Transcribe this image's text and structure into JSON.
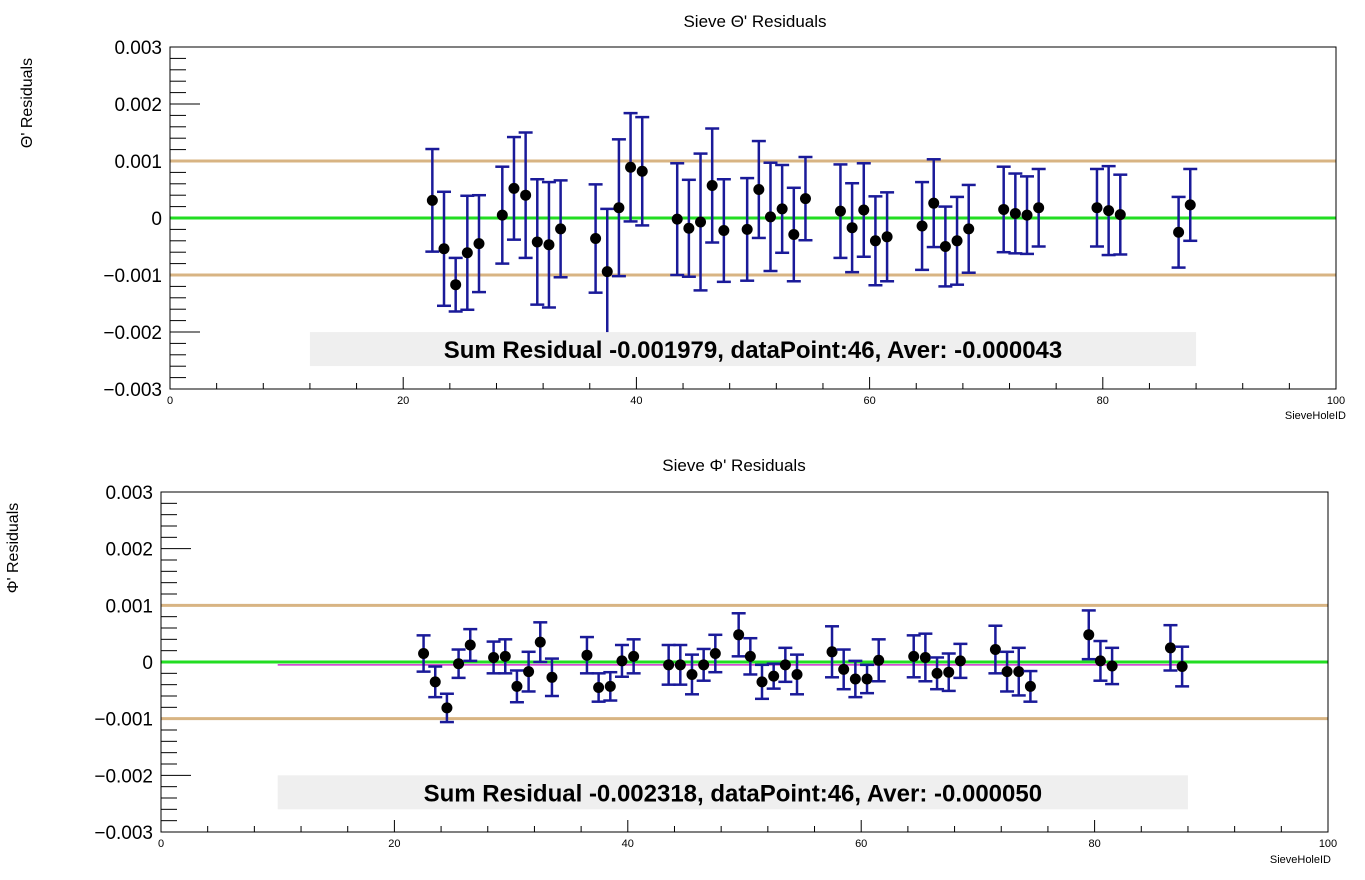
{
  "chart_data": [
    {
      "type": "scatter",
      "title": "Sieve Θ' Residuals",
      "ylabel": "Θ' Residuals",
      "xlabel": "SieveHoleID",
      "xlim": [
        0,
        100
      ],
      "ylim": [
        -0.003,
        0.003
      ],
      "x_ticks": [
        "0",
        "20",
        "40",
        "60",
        "80",
        "100"
      ],
      "y_ticks": [
        "0.003",
        "0.002",
        "0.001",
        "0",
        "−0.001",
        "−0.002",
        "−0.003"
      ],
      "reference_lines": [
        {
          "y": 0.001,
          "color": "#d8b483"
        },
        {
          "y": 0,
          "color": "#22dd22"
        },
        {
          "y": -0.001,
          "color": "#d8b483"
        }
      ],
      "summary_text": "Sum Residual -0.001979, dataPoint:46, Aver: -0.000043",
      "marker_color": "#000000",
      "error_color": "#1a1a99",
      "points": [
        {
          "x": 22.5,
          "y": 0.00031,
          "err": 0.0009
        },
        {
          "x": 23.5,
          "y": -0.00054,
          "err": 0.001
        },
        {
          "x": 24.5,
          "y": -0.00117,
          "err": 0.00047
        },
        {
          "x": 25.5,
          "y": -0.00061,
          "err": 0.001
        },
        {
          "x": 26.5,
          "y": -0.00045,
          "err": 0.00085
        },
        {
          "x": 28.5,
          "y": 5e-05,
          "err": 0.00085
        },
        {
          "x": 29.5,
          "y": 0.00052,
          "err": 0.0009
        },
        {
          "x": 30.5,
          "y": 0.0004,
          "err": 0.0011
        },
        {
          "x": 31.5,
          "y": -0.00042,
          "err": 0.0011
        },
        {
          "x": 32.5,
          "y": -0.00047,
          "err": 0.0011
        },
        {
          "x": 33.5,
          "y": -0.00019,
          "err": 0.00085
        },
        {
          "x": 36.5,
          "y": -0.00036,
          "err": 0.00095
        },
        {
          "x": 37.5,
          "y": -0.00094,
          "err": 0.0011
        },
        {
          "x": 38.5,
          "y": 0.00018,
          "err": 0.0012
        },
        {
          "x": 39.5,
          "y": 0.00089,
          "err": 0.00095
        },
        {
          "x": 40.5,
          "y": 0.00082,
          "err": 0.00095
        },
        {
          "x": 43.5,
          "y": -2e-05,
          "err": 0.00098
        },
        {
          "x": 44.5,
          "y": -0.00018,
          "err": 0.00085
        },
        {
          "x": 45.5,
          "y": -7e-05,
          "err": 0.0012
        },
        {
          "x": 46.5,
          "y": 0.00057,
          "err": 0.001
        },
        {
          "x": 47.5,
          "y": -0.00022,
          "err": 0.0009
        },
        {
          "x": 49.5,
          "y": -0.0002,
          "err": 0.0009
        },
        {
          "x": 50.5,
          "y": 0.0005,
          "err": 0.00085
        },
        {
          "x": 51.5,
          "y": 2e-05,
          "err": 0.00095
        },
        {
          "x": 52.5,
          "y": 0.00016,
          "err": 0.00077
        },
        {
          "x": 53.5,
          "y": -0.00029,
          "err": 0.00082
        },
        {
          "x": 54.5,
          "y": 0.00034,
          "err": 0.00073
        },
        {
          "x": 57.5,
          "y": 0.00012,
          "err": 0.00082
        },
        {
          "x": 58.5,
          "y": -0.00017,
          "err": 0.00078
        },
        {
          "x": 59.5,
          "y": 0.00014,
          "err": 0.00082
        },
        {
          "x": 60.5,
          "y": -0.0004,
          "err": 0.00078
        },
        {
          "x": 61.5,
          "y": -0.00033,
          "err": 0.00078
        },
        {
          "x": 64.5,
          "y": -0.00014,
          "err": 0.00077
        },
        {
          "x": 65.5,
          "y": 0.00026,
          "err": 0.00077
        },
        {
          "x": 66.5,
          "y": -0.0005,
          "err": 0.0007
        },
        {
          "x": 67.5,
          "y": -0.0004,
          "err": 0.00077
        },
        {
          "x": 68.5,
          "y": -0.00019,
          "err": 0.00077
        },
        {
          "x": 71.5,
          "y": 0.00015,
          "err": 0.00075
        },
        {
          "x": 72.5,
          "y": 8e-05,
          "err": 0.0007
        },
        {
          "x": 73.5,
          "y": 5e-05,
          "err": 0.00068
        },
        {
          "x": 74.5,
          "y": 0.00018,
          "err": 0.00068
        },
        {
          "x": 79.5,
          "y": 0.00018,
          "err": 0.00068
        },
        {
          "x": 80.5,
          "y": 0.00013,
          "err": 0.00078
        },
        {
          "x": 81.5,
          "y": 6e-05,
          "err": 0.0007
        },
        {
          "x": 86.5,
          "y": -0.00025,
          "err": 0.00062
        },
        {
          "x": 87.5,
          "y": 0.00023,
          "err": 0.00063
        }
      ]
    },
    {
      "type": "scatter",
      "title": "Sieve Φ' Residuals",
      "ylabel": "Φ' Residuals",
      "xlabel": "SieveHoleID",
      "xlim": [
        0,
        100
      ],
      "ylim": [
        -0.003,
        0.003
      ],
      "x_ticks": [
        "0",
        "20",
        "40",
        "60",
        "80",
        "100"
      ],
      "y_ticks": [
        "0.003",
        "0.002",
        "0.001",
        "0",
        "−0.001",
        "−0.002",
        "−0.003"
      ],
      "reference_lines": [
        {
          "y": 0.001,
          "color": "#d8b483"
        },
        {
          "y": 0,
          "color": "#22dd22"
        },
        {
          "y": -0.001,
          "color": "#d8b483"
        }
      ],
      "average_line": {
        "y": -5e-05,
        "x_from": 10,
        "x_to": 87.5,
        "color": "#cc33cc"
      },
      "summary_text": "Sum Residual -0.002318, dataPoint:46, Aver: -0.000050",
      "marker_color": "#000000",
      "error_color": "#1a1a99",
      "points": [
        {
          "x": 22.5,
          "y": 0.00015,
          "err": 0.00032
        },
        {
          "x": 23.5,
          "y": -0.00035,
          "err": 0.00027
        },
        {
          "x": 24.5,
          "y": -0.00081,
          "err": 0.00025
        },
        {
          "x": 25.5,
          "y": -3e-05,
          "err": 0.00025
        },
        {
          "x": 26.5,
          "y": 0.0003,
          "err": 0.00028
        },
        {
          "x": 28.5,
          "y": 8e-05,
          "err": 0.00028
        },
        {
          "x": 29.5,
          "y": 0.0001,
          "err": 0.0003
        },
        {
          "x": 30.5,
          "y": -0.00043,
          "err": 0.00028
        },
        {
          "x": 31.5,
          "y": -0.00017,
          "err": 0.00035
        },
        {
          "x": 32.5,
          "y": 0.00035,
          "err": 0.00035
        },
        {
          "x": 33.5,
          "y": -0.00027,
          "err": 0.00033
        },
        {
          "x": 36.5,
          "y": 0.00012,
          "err": 0.00032
        },
        {
          "x": 37.5,
          "y": -0.00045,
          "err": 0.00025
        },
        {
          "x": 38.5,
          "y": -0.00043,
          "err": 0.00025
        },
        {
          "x": 39.5,
          "y": 2e-05,
          "err": 0.00028
        },
        {
          "x": 40.5,
          "y": 0.0001,
          "err": 0.0003
        },
        {
          "x": 43.5,
          "y": -5e-05,
          "err": 0.00035
        },
        {
          "x": 44.5,
          "y": -5e-05,
          "err": 0.00035
        },
        {
          "x": 45.5,
          "y": -0.00022,
          "err": 0.00035
        },
        {
          "x": 46.5,
          "y": -5e-05,
          "err": 0.00028
        },
        {
          "x": 47.5,
          "y": 0.00015,
          "err": 0.00033
        },
        {
          "x": 49.5,
          "y": 0.00048,
          "err": 0.00038
        },
        {
          "x": 50.5,
          "y": 0.0001,
          "err": 0.00032
        },
        {
          "x": 51.5,
          "y": -0.00035,
          "err": 0.0003
        },
        {
          "x": 52.5,
          "y": -0.00025,
          "err": 0.00022
        },
        {
          "x": 53.5,
          "y": -5e-05,
          "err": 0.0003
        },
        {
          "x": 54.5,
          "y": -0.00022,
          "err": 0.00035
        },
        {
          "x": 57.5,
          "y": 0.00018,
          "err": 0.00045
        },
        {
          "x": 58.5,
          "y": -0.00013,
          "err": 0.00035
        },
        {
          "x": 59.5,
          "y": -0.0003,
          "err": 0.00032
        },
        {
          "x": 60.5,
          "y": -0.0003,
          "err": 0.00025
        },
        {
          "x": 61.5,
          "y": 3e-05,
          "err": 0.00037
        },
        {
          "x": 64.5,
          "y": 0.0001,
          "err": 0.00037
        },
        {
          "x": 65.5,
          "y": 8e-05,
          "err": 0.00042
        },
        {
          "x": 66.5,
          "y": -0.0002,
          "err": 0.00028
        },
        {
          "x": 67.5,
          "y": -0.00018,
          "err": 0.00033
        },
        {
          "x": 68.5,
          "y": 2e-05,
          "err": 0.0003
        },
        {
          "x": 71.5,
          "y": 0.00022,
          "err": 0.00042
        },
        {
          "x": 72.5,
          "y": -0.00017,
          "err": 0.00035
        },
        {
          "x": 73.5,
          "y": -0.00017,
          "err": 0.00042
        },
        {
          "x": 74.5,
          "y": -0.00043,
          "err": 0.00027
        },
        {
          "x": 79.5,
          "y": 0.00048,
          "err": 0.00043
        },
        {
          "x": 80.5,
          "y": 2e-05,
          "err": 0.00035
        },
        {
          "x": 81.5,
          "y": -7e-05,
          "err": 0.00032
        },
        {
          "x": 86.5,
          "y": 0.00025,
          "err": 0.0004
        },
        {
          "x": 87.5,
          "y": -8e-05,
          "err": 0.00035
        }
      ]
    }
  ]
}
